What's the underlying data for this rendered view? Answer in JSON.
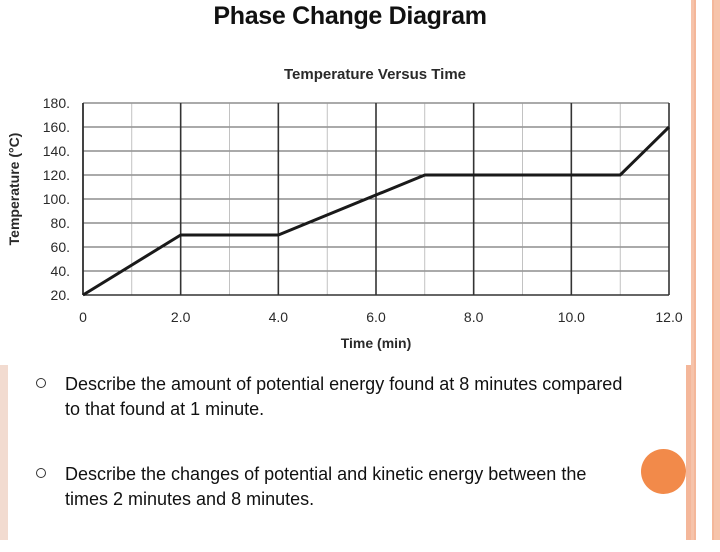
{
  "slide": {
    "title": "Phase Change Diagram",
    "bullets": [
      "Describe the amount of potential energy found at 8 minutes compared to that found at 1 minute.",
      "Describe the changes of potential and kinetic energy between the times 2 minutes and 8 minutes."
    ]
  },
  "colors": {
    "accent": "#f28a4a",
    "deco": "#f6c3aa"
  },
  "chart_data": {
    "type": "line",
    "title": "Temperature Versus Time",
    "xlabel": "Time (min)",
    "ylabel": "Temperature (°C)",
    "xlim": [
      0,
      12
    ],
    "ylim": [
      20,
      180
    ],
    "x_ticks": [
      "0",
      "2.0",
      "4.0",
      "6.0",
      "8.0",
      "10.0",
      "12.0"
    ],
    "y_ticks": [
      "20.",
      "40.",
      "60.",
      "80.",
      "100.",
      "120.",
      "140.",
      "160.",
      "180."
    ],
    "grid": true,
    "series": [
      {
        "x": [
          0,
          2,
          4,
          7,
          11,
          12
        ],
        "y": [
          20,
          70,
          70,
          120,
          120,
          160
        ]
      }
    ]
  }
}
